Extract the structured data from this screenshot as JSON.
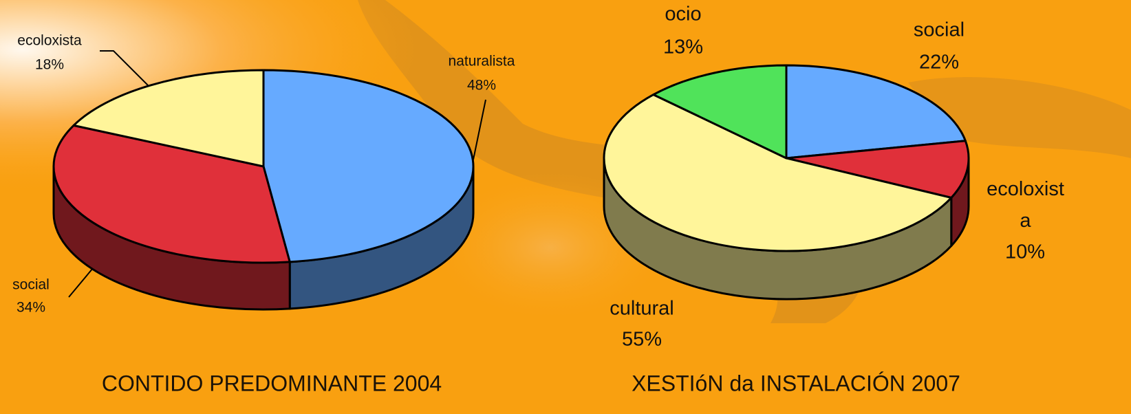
{
  "chart_data": [
    {
      "type": "pie",
      "title": "CONTIDO PREDOMINANTE 2004",
      "categories": [
        "naturalista",
        "social",
        "ecoloxista"
      ],
      "values": [
        48,
        34,
        18
      ],
      "value_labels": [
        "48%",
        "34%",
        "18%"
      ],
      "colors": [
        "#66aaff",
        "#e0303a",
        "#fff59a"
      ]
    },
    {
      "type": "pie",
      "title": "XESTIóN da INSTALACIÓN 2007",
      "categories": [
        "social",
        "ecoloxista",
        "cultural",
        "ocio"
      ],
      "values": [
        22,
        10,
        55,
        13
      ],
      "value_labels": [
        "22%",
        "10%",
        "55%",
        "13%"
      ],
      "colors": [
        "#66aaff",
        "#e0303a",
        "#fff59a",
        "#50e35a"
      ]
    }
  ]
}
